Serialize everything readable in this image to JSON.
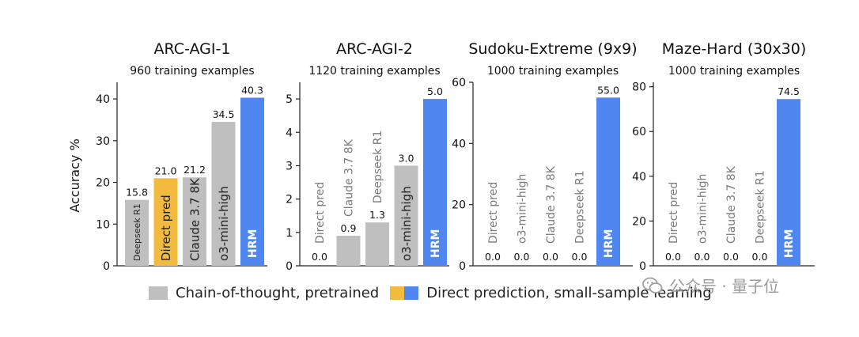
{
  "colors": {
    "cot": "#bfbfbf",
    "direct": "#f2bb3e",
    "hrm": "#4f86f0"
  },
  "y_axis_label": "Accuracy %",
  "chart_data": [
    {
      "type": "bar",
      "title": "ARC-AGI-1",
      "subtitle": "960 training examples",
      "ylim": [
        0,
        44
      ],
      "yticks": [
        0,
        10,
        20,
        30,
        40
      ],
      "categories": [
        "Deepseek R1",
        "Direct pred",
        "Claude 3.7 8K",
        "o3-mini-high",
        "HRM"
      ],
      "values": [
        15.8,
        21.0,
        21.2,
        34.5,
        40.3
      ],
      "value_labels": [
        "15.8",
        "21.0",
        "21.2",
        "34.5",
        "40.3"
      ],
      "groups": [
        "cot",
        "direct",
        "cot",
        "cot",
        "hrm"
      ]
    },
    {
      "type": "bar",
      "title": "ARC-AGI-2",
      "subtitle": "1120 training examples",
      "ylim": [
        0,
        5.5
      ],
      "yticks": [
        0,
        1,
        2,
        3,
        4,
        5
      ],
      "categories": [
        "Direct pred",
        "Claude 3.7 8K",
        "Deepseek R1",
        "o3-mini-high",
        "HRM"
      ],
      "values": [
        0.0,
        0.9,
        1.3,
        3.0,
        5.0
      ],
      "value_labels": [
        "0.0",
        "0.9",
        "1.3",
        "3.0",
        "5.0"
      ],
      "groups": [
        "direct",
        "cot",
        "cot",
        "cot",
        "hrm"
      ]
    },
    {
      "type": "bar",
      "title": "Sudoku-Extreme (9x9)",
      "subtitle": "1000 training examples",
      "ylim": [
        0,
        60
      ],
      "yticks": [
        0,
        20,
        40,
        60
      ],
      "categories": [
        "Direct pred",
        "o3-mini-high",
        "Claude 3.7 8K",
        "Deepseek R1",
        "HRM"
      ],
      "values": [
        0.0,
        0.0,
        0.0,
        0.0,
        55.0
      ],
      "value_labels": [
        "0.0",
        "0.0",
        "0.0",
        "0.0",
        "55.0"
      ],
      "groups": [
        "direct",
        "cot",
        "cot",
        "cot",
        "hrm"
      ]
    },
    {
      "type": "bar",
      "title": "Maze-Hard (30x30)",
      "subtitle": "1000 training examples",
      "ylim": [
        0,
        82
      ],
      "yticks": [
        0,
        20,
        40,
        60,
        80
      ],
      "categories": [
        "Direct pred",
        "o3-mini-high",
        "Claude 3.7 8K",
        "Deepseek R1",
        "HRM"
      ],
      "values": [
        0.0,
        0.0,
        0.0,
        0.0,
        74.5
      ],
      "value_labels": [
        "0.0",
        "0.0",
        "0.0",
        "0.0",
        "74.5"
      ],
      "groups": [
        "direct",
        "cot",
        "cot",
        "cot",
        "hrm"
      ]
    }
  ],
  "legend": {
    "cot_label": "Chain-of-thought, pretrained",
    "direct_label": "Direct prediction, small-sample learning"
  },
  "watermark": {
    "text": "公众号 · 量子位"
  }
}
